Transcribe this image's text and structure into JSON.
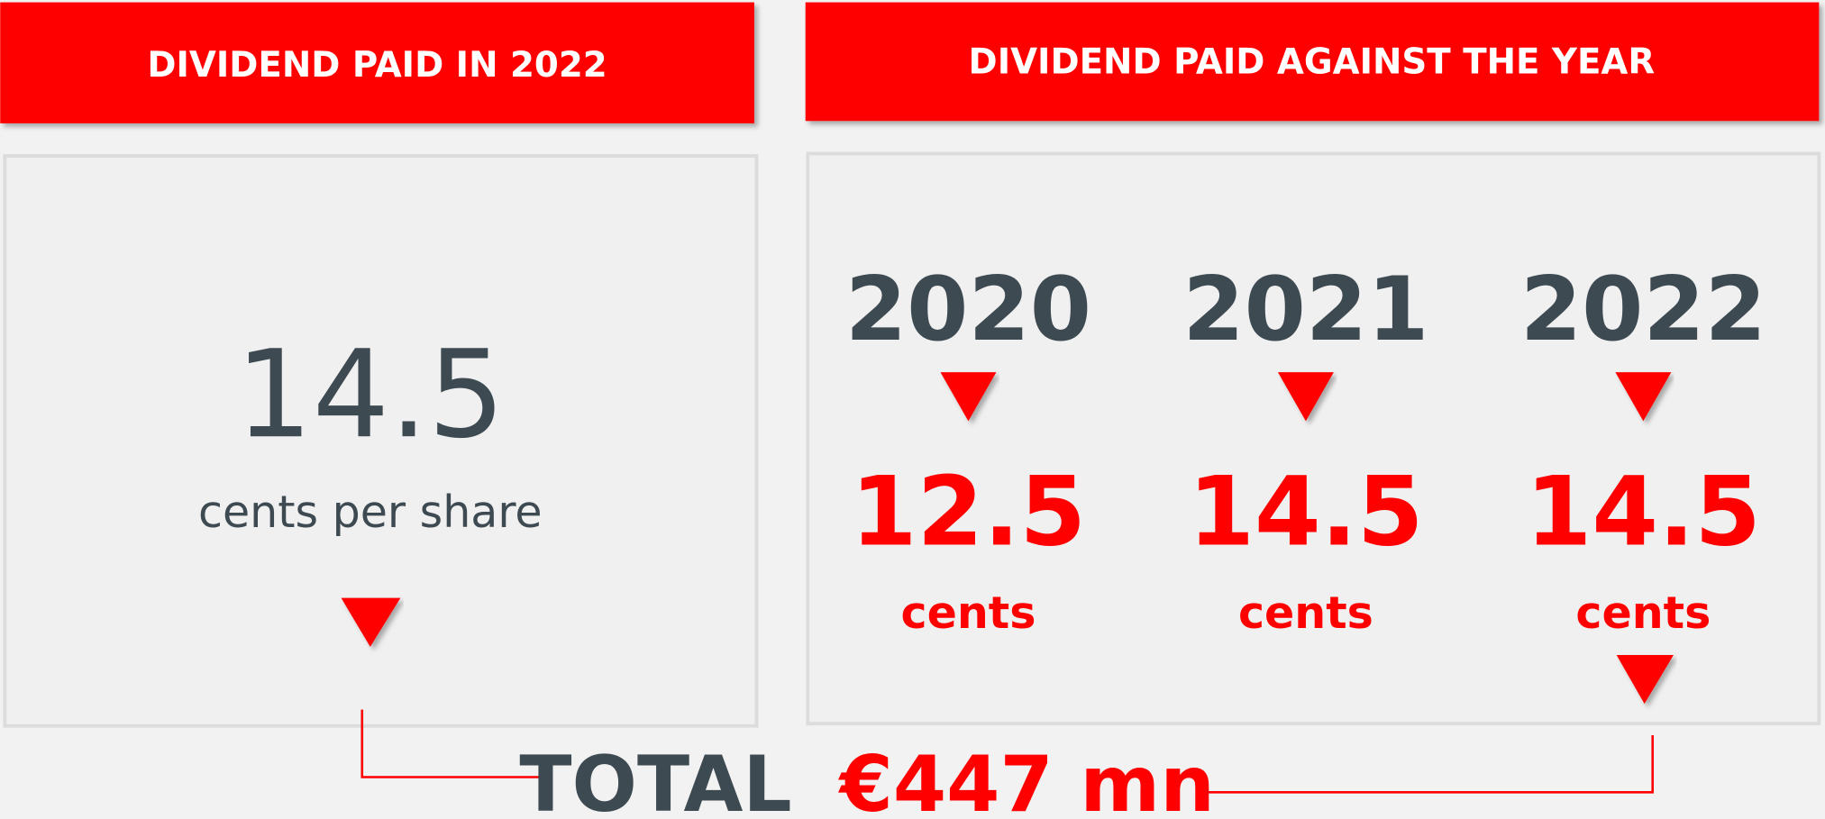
{
  "left": {
    "title": "DIVIDEND PAID IN 2022",
    "value": "14.5",
    "unit": "cents per share"
  },
  "right": {
    "title": "DIVIDEND PAID AGAINST THE YEAR",
    "years": [
      {
        "year": "2020",
        "value": "12.5",
        "unit": "cents"
      },
      {
        "year": "2021",
        "value": "14.5",
        "unit": "cents"
      },
      {
        "year": "2022",
        "value": "14.5",
        "unit": "cents"
      }
    ]
  },
  "total": {
    "label": "TOTAL",
    "amount": "€447 mn"
  }
}
